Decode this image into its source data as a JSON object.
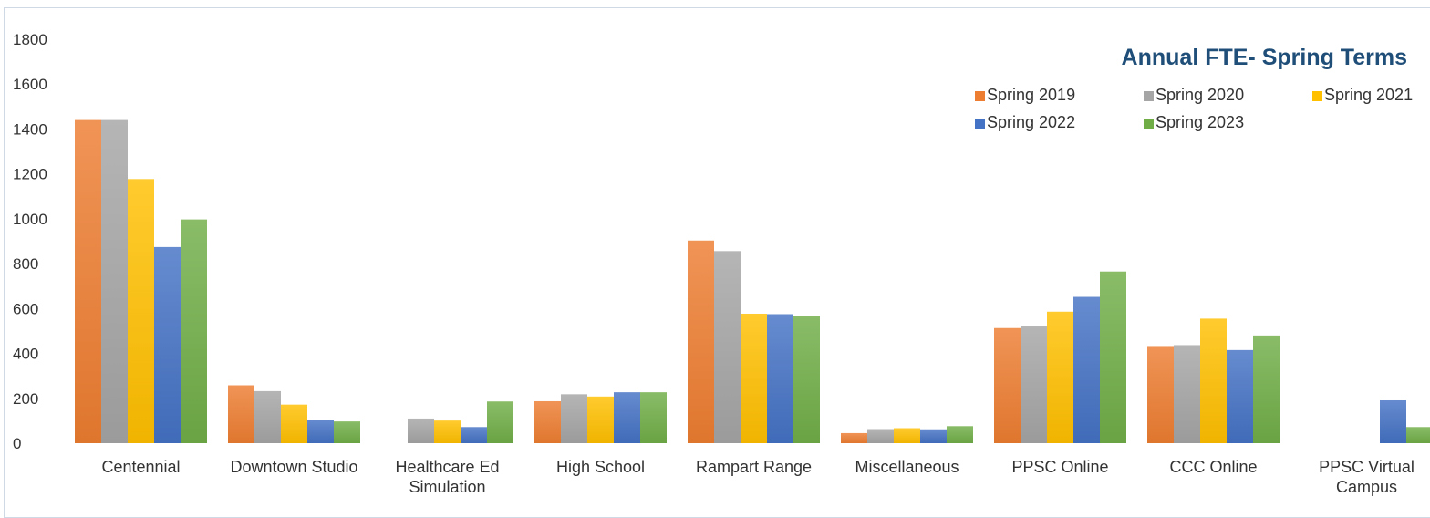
{
  "chart_data": {
    "type": "bar",
    "title": "Annual FTE- Spring Terms",
    "xlabel": "",
    "ylabel": "",
    "ylim": [
      0,
      1800
    ],
    "yticks": [
      "0",
      "200",
      "400",
      "600",
      "800",
      "1000",
      "1200",
      "1400",
      "1600",
      "1800"
    ],
    "grid": false,
    "legend_position": "top-right",
    "categories": [
      [
        "Centennial"
      ],
      [
        "Downtown Studio"
      ],
      [
        "Healthcare Ed",
        "Simulation"
      ],
      [
        "High School"
      ],
      [
        "Rampart Range"
      ],
      [
        "Miscellaneous"
      ],
      [
        "PPSC Online"
      ],
      [
        "CCC Online"
      ],
      [
        "PPSC Virtual",
        "Campus"
      ]
    ],
    "series": [
      {
        "name": "Spring 2019",
        "color": "#ed7d31",
        "values": [
          1440,
          258,
          0,
          187,
          903,
          45,
          513,
          433,
          0
        ]
      },
      {
        "name": "Spring 2020",
        "color": "#a5a5a5",
        "values": [
          1440,
          232,
          110,
          218,
          856,
          63,
          520,
          437,
          0
        ]
      },
      {
        "name": "Spring 2021",
        "color": "#ffc000",
        "values": [
          1177,
          172,
          101,
          208,
          577,
          67,
          586,
          555,
          0
        ]
      },
      {
        "name": "Spring 2022",
        "color": "#4472c4",
        "values": [
          874,
          104,
          72,
          227,
          575,
          62,
          652,
          415,
          191
        ]
      },
      {
        "name": "Spring 2023",
        "color": "#70ad47",
        "values": [
          997,
          97,
          186,
          227,
          567,
          76,
          765,
          480,
          72
        ]
      }
    ]
  }
}
